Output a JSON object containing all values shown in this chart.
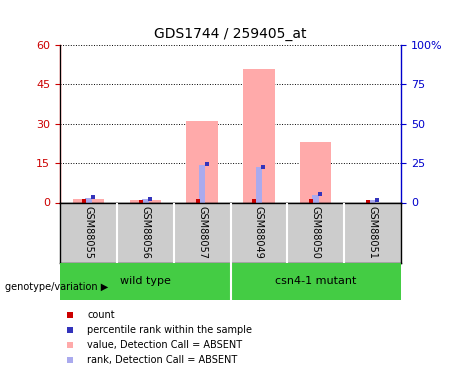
{
  "title": "GDS1744 / 259405_at",
  "samples": [
    "GSM88055",
    "GSM88056",
    "GSM88057",
    "GSM88049",
    "GSM88050",
    "GSM88051"
  ],
  "pink_bar_values": [
    1.5,
    0.8,
    31.0,
    51.0,
    23.0,
    0.0
  ],
  "blue_bar_values_right": [
    3.0,
    2.0,
    24.0,
    22.5,
    5.0,
    1.5
  ],
  "red_dot_height": [
    0.4,
    0.2,
    0.4,
    0.4,
    0.4,
    0.1
  ],
  "blue_dot_height_right": [
    3.0,
    2.0,
    24.0,
    22.5,
    5.0,
    1.5
  ],
  "ylim_left": [
    0,
    60
  ],
  "ylim_right": [
    0,
    100
  ],
  "yticks_left": [
    0,
    15,
    30,
    45,
    60
  ],
  "yticks_right": [
    0,
    25,
    50,
    75,
    100
  ],
  "ytick_labels_right": [
    "0",
    "25",
    "50",
    "75",
    "100%"
  ],
  "left_axis_color": "#cc0000",
  "right_axis_color": "#0000cc",
  "pink_color": "#ffaaaa",
  "blue_bar_color": "#aaaaee",
  "red_dot_color": "#cc0000",
  "blue_dot_color": "#3333bb",
  "background_color": "#ffffff",
  "group_bg_color": "#44cc44",
  "sample_box_color": "#cccccc",
  "group_labels": [
    "wild type",
    "csn4-1 mutant"
  ],
  "group_ranges": [
    [
      0,
      2
    ],
    [
      3,
      5
    ]
  ],
  "genotype_label": "genotype/variation",
  "legend_items": [
    "count",
    "percentile rank within the sample",
    "value, Detection Call = ABSENT",
    "rank, Detection Call = ABSENT"
  ],
  "legend_colors": [
    "#cc0000",
    "#3333bb",
    "#ffaaaa",
    "#aaaaee"
  ]
}
